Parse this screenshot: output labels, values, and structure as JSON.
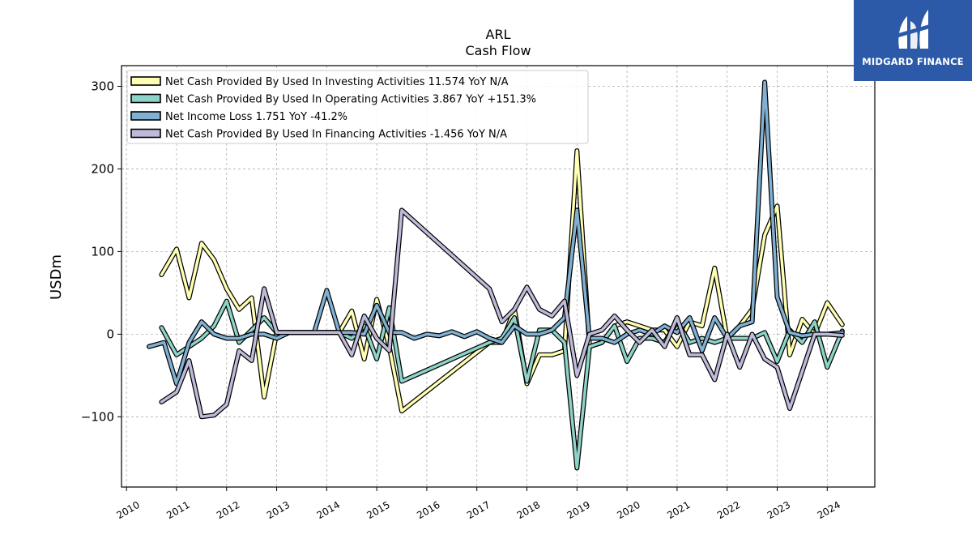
{
  "chart_data": {
    "type": "line",
    "title": "ARL",
    "subtitle": "Cash Flow",
    "ylabel": "USDm",
    "xlabel": "",
    "xlim": [
      2009.9,
      2024.95
    ],
    "ylim": [
      -185,
      325
    ],
    "x_ticks": [
      "2010",
      "2011",
      "2012",
      "2013",
      "2014",
      "2015",
      "2016",
      "2017",
      "2018",
      "2019",
      "2020",
      "2021",
      "2022",
      "2023",
      "2024"
    ],
    "y_ticks": [
      -100,
      0,
      100,
      200,
      300
    ],
    "y_tick_labels": [
      "−100",
      "0",
      "100",
      "200",
      "300"
    ],
    "grid": true,
    "legend_position": "top-left",
    "series": [
      {
        "name": "Net Cash Provided By Used In Investing Activities",
        "legend_label": "Net Cash Provided By Used In Investing Activities  11.574 YoY N/A",
        "color": "#ffffb3",
        "points": [
          [
            2010.7,
            72
          ],
          [
            2011.0,
            103
          ],
          [
            2011.25,
            44
          ],
          [
            2011.5,
            110
          ],
          [
            2011.75,
            90
          ],
          [
            2012.0,
            55
          ],
          [
            2012.25,
            30
          ],
          [
            2012.5,
            44
          ],
          [
            2012.75,
            -76
          ],
          [
            2013.0,
            2
          ],
          [
            2013.25,
            2
          ],
          [
            2013.5,
            2
          ],
          [
            2013.75,
            2
          ],
          [
            2014.0,
            2
          ],
          [
            2014.25,
            2
          ],
          [
            2014.5,
            28
          ],
          [
            2014.75,
            -30
          ],
          [
            2015.0,
            42
          ],
          [
            2015.25,
            -15
          ],
          [
            2015.5,
            -93
          ],
          [
            2017.25,
            -10
          ],
          [
            2017.5,
            -10
          ],
          [
            2017.75,
            30
          ],
          [
            2018.0,
            -60
          ],
          [
            2018.25,
            -25
          ],
          [
            2018.5,
            -25
          ],
          [
            2018.75,
            -20
          ],
          [
            2019.0,
            222
          ],
          [
            2019.25,
            -15
          ],
          [
            2019.5,
            -10
          ],
          [
            2019.75,
            10
          ],
          [
            2020.0,
            15
          ],
          [
            2020.25,
            10
          ],
          [
            2020.5,
            5
          ],
          [
            2020.75,
            5
          ],
          [
            2021.0,
            -15
          ],
          [
            2021.25,
            15
          ],
          [
            2021.5,
            10
          ],
          [
            2021.75,
            80
          ],
          [
            2022.0,
            -5
          ],
          [
            2022.25,
            10
          ],
          [
            2022.5,
            30
          ],
          [
            2022.75,
            120
          ],
          [
            2023.0,
            155
          ],
          [
            2023.25,
            -25
          ],
          [
            2023.5,
            18
          ],
          [
            2023.75,
            0
          ],
          [
            2024.0,
            38
          ],
          [
            2024.3,
            11.574
          ]
        ]
      },
      {
        "name": "Net Cash Provided By Used In Operating Activities",
        "legend_label": "Net Cash Provided By Used In Operating Activities  3.867 YoY +151.3%",
        "color": "#8dd3c7",
        "points": [
          [
            2010.7,
            8
          ],
          [
            2011.0,
            -25
          ],
          [
            2011.25,
            -15
          ],
          [
            2011.5,
            -5
          ],
          [
            2011.75,
            10
          ],
          [
            2012.0,
            40
          ],
          [
            2012.25,
            -10
          ],
          [
            2012.5,
            5
          ],
          [
            2012.75,
            20
          ],
          [
            2013.0,
            2
          ],
          [
            2013.25,
            2
          ],
          [
            2013.5,
            2
          ],
          [
            2013.75,
            2
          ],
          [
            2014.0,
            2
          ],
          [
            2014.25,
            2
          ],
          [
            2014.5,
            -5
          ],
          [
            2014.75,
            10
          ],
          [
            2015.0,
            -30
          ],
          [
            2015.25,
            32
          ],
          [
            2015.5,
            -57
          ],
          [
            2017.25,
            -10
          ],
          [
            2017.5,
            -5
          ],
          [
            2017.75,
            20
          ],
          [
            2018.0,
            -57
          ],
          [
            2018.25,
            5
          ],
          [
            2018.5,
            5
          ],
          [
            2018.75,
            -10
          ],
          [
            2019.0,
            -162
          ],
          [
            2019.25,
            -15
          ],
          [
            2019.5,
            -10
          ],
          [
            2019.75,
            10
          ],
          [
            2020.0,
            -33
          ],
          [
            2020.25,
            -5
          ],
          [
            2020.5,
            -5
          ],
          [
            2020.75,
            -10
          ],
          [
            2021.0,
            15
          ],
          [
            2021.25,
            -10
          ],
          [
            2021.5,
            -5
          ],
          [
            2021.75,
            -10
          ],
          [
            2022.0,
            -5
          ],
          [
            2022.25,
            -5
          ],
          [
            2022.5,
            -5
          ],
          [
            2022.75,
            2
          ],
          [
            2023.0,
            -33
          ],
          [
            2023.25,
            5
          ],
          [
            2023.5,
            -10
          ],
          [
            2023.75,
            15
          ],
          [
            2024.0,
            -40
          ],
          [
            2024.3,
            3.867
          ]
        ]
      },
      {
        "name": "Net Income Loss",
        "legend_label": "Net Income Loss  1.751 YoY -41.2%",
        "color": "#80b1d3",
        "points": [
          [
            2010.45,
            -15
          ],
          [
            2010.75,
            -10
          ],
          [
            2011.0,
            -60
          ],
          [
            2011.25,
            -10
          ],
          [
            2011.5,
            15
          ],
          [
            2011.75,
            0
          ],
          [
            2012.0,
            -5
          ],
          [
            2012.25,
            -5
          ],
          [
            2012.5,
            0
          ],
          [
            2012.75,
            0
          ],
          [
            2013.0,
            -5
          ],
          [
            2013.25,
            2
          ],
          [
            2013.5,
            2
          ],
          [
            2013.75,
            2
          ],
          [
            2014.0,
            53
          ],
          [
            2014.25,
            2
          ],
          [
            2014.5,
            2
          ],
          [
            2014.75,
            0
          ],
          [
            2015.0,
            35
          ],
          [
            2015.25,
            2
          ],
          [
            2015.5,
            2
          ],
          [
            2015.75,
            -5
          ],
          [
            2016.0,
            0
          ],
          [
            2016.25,
            -2
          ],
          [
            2016.5,
            3
          ],
          [
            2016.75,
            -3
          ],
          [
            2017.0,
            3
          ],
          [
            2017.25,
            -5
          ],
          [
            2017.5,
            -10
          ],
          [
            2017.75,
            10
          ],
          [
            2018.0,
            0
          ],
          [
            2018.25,
            0
          ],
          [
            2018.5,
            5
          ],
          [
            2018.75,
            20
          ],
          [
            2019.0,
            150
          ],
          [
            2019.25,
            -5
          ],
          [
            2019.5,
            -5
          ],
          [
            2019.75,
            -10
          ],
          [
            2020.0,
            0
          ],
          [
            2020.25,
            5
          ],
          [
            2020.5,
            0
          ],
          [
            2020.75,
            10
          ],
          [
            2021.0,
            2
          ],
          [
            2021.25,
            20
          ],
          [
            2021.5,
            -20
          ],
          [
            2021.75,
            20
          ],
          [
            2022.0,
            -5
          ],
          [
            2022.25,
            10
          ],
          [
            2022.5,
            15
          ],
          [
            2022.75,
            305
          ],
          [
            2023.0,
            45
          ],
          [
            2023.25,
            2
          ],
          [
            2023.5,
            -2
          ],
          [
            2023.75,
            0
          ],
          [
            2024.0,
            0
          ],
          [
            2024.3,
            1.751
          ]
        ]
      },
      {
        "name": "Net Cash Provided By Used In Financing Activities",
        "legend_label": "Net Cash Provided By Used In Financing Activities  -1.456 YoY N/A",
        "color": "#bebada",
        "points": [
          [
            2010.7,
            -82
          ],
          [
            2011.0,
            -70
          ],
          [
            2011.25,
            -32
          ],
          [
            2011.5,
            -100
          ],
          [
            2011.75,
            -98
          ],
          [
            2012.0,
            -85
          ],
          [
            2012.25,
            -20
          ],
          [
            2012.5,
            -32
          ],
          [
            2012.75,
            55
          ],
          [
            2013.0,
            2
          ],
          [
            2013.25,
            2
          ],
          [
            2013.5,
            2
          ],
          [
            2013.75,
            2
          ],
          [
            2014.0,
            2
          ],
          [
            2014.25,
            2
          ],
          [
            2014.5,
            -25
          ],
          [
            2014.75,
            22
          ],
          [
            2015.0,
            -5
          ],
          [
            2015.25,
            -20
          ],
          [
            2015.5,
            150
          ],
          [
            2017.25,
            55
          ],
          [
            2017.5,
            15
          ],
          [
            2017.75,
            30
          ],
          [
            2018.0,
            57
          ],
          [
            2018.25,
            30
          ],
          [
            2018.5,
            22
          ],
          [
            2018.75,
            40
          ],
          [
            2019.0,
            -50
          ],
          [
            2019.25,
            0
          ],
          [
            2019.5,
            5
          ],
          [
            2019.75,
            22
          ],
          [
            2020.0,
            5
          ],
          [
            2020.25,
            -10
          ],
          [
            2020.5,
            5
          ],
          [
            2020.75,
            -15
          ],
          [
            2021.0,
            20
          ],
          [
            2021.25,
            -25
          ],
          [
            2021.5,
            -25
          ],
          [
            2021.75,
            -55
          ],
          [
            2022.0,
            0
          ],
          [
            2022.25,
            -40
          ],
          [
            2022.5,
            0
          ],
          [
            2022.75,
            -30
          ],
          [
            2023.0,
            -40
          ],
          [
            2023.25,
            -90
          ],
          [
            2023.5,
            -45
          ],
          [
            2023.75,
            0
          ],
          [
            2024.0,
            0
          ],
          [
            2024.3,
            -1.456
          ]
        ]
      }
    ]
  },
  "branding": {
    "logo_text": "MIDGARD FINANCE"
  }
}
